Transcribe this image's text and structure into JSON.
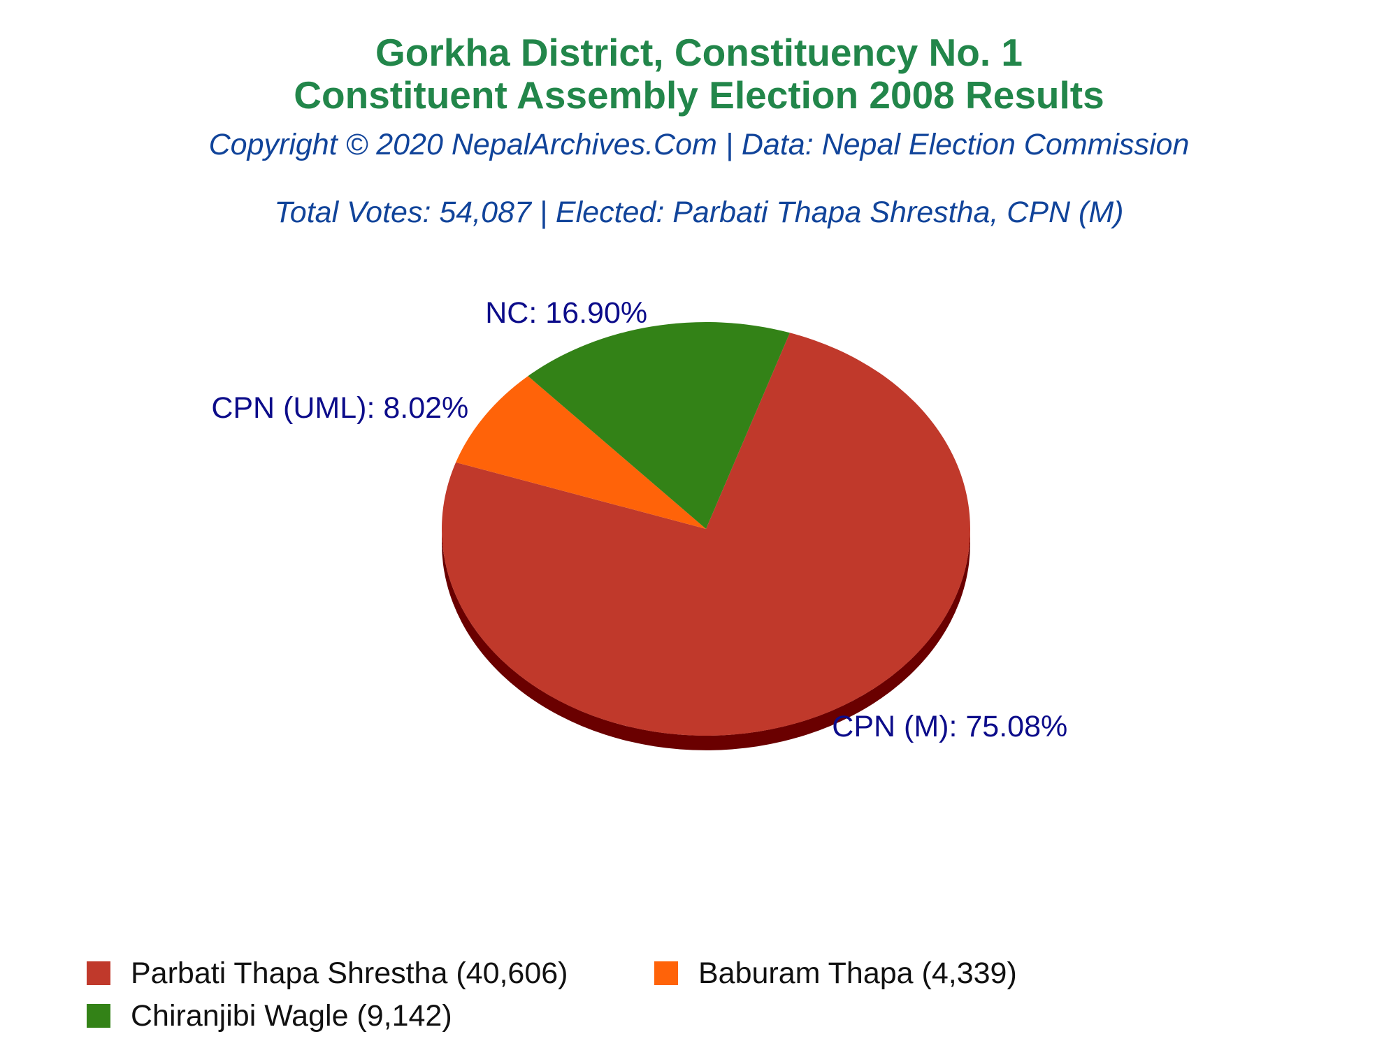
{
  "header": {
    "title_line1": "Gorkha District, Constituency No. 1",
    "title_line2": "Constituent Assembly Election 2008 Results",
    "copyright": "Copyright © 2020 NepalArchives.Com | Data: Nepal Election Commission",
    "summary": "Total Votes: 54,087 | Elected: Parbati Thapa Shrestha, CPN (M)"
  },
  "chart_data": {
    "type": "pie",
    "title": "Gorkha District, Constituency No. 1 Constituent Assembly Election 2008 Results",
    "legend_position": "bottom-left",
    "slices": [
      {
        "party": "CPN (M)",
        "candidate": "Parbati Thapa Shrestha",
        "votes": 40606,
        "percent": 75.08,
        "label": "CPN (M): 75.08%",
        "legend": "Parbati Thapa Shrestha (40,606)",
        "color": "#c0392b",
        "side_color": "#6a0000"
      },
      {
        "party": "CPN (UML)",
        "candidate": "Baburam Thapa",
        "votes": 4339,
        "percent": 8.02,
        "label": "CPN (UML): 8.02%",
        "legend": "Baburam Thapa (4,339)",
        "color": "#ff6309",
        "side_color": "#8a3000"
      },
      {
        "party": "NC",
        "candidate": "Chiranjibi Wagle",
        "votes": 9142,
        "percent": 16.9,
        "label": "NC: 16.90%",
        "legend": "Chiranjibi Wagle (9,142)",
        "color": "#338217",
        "side_color": "#0f3300"
      }
    ]
  }
}
